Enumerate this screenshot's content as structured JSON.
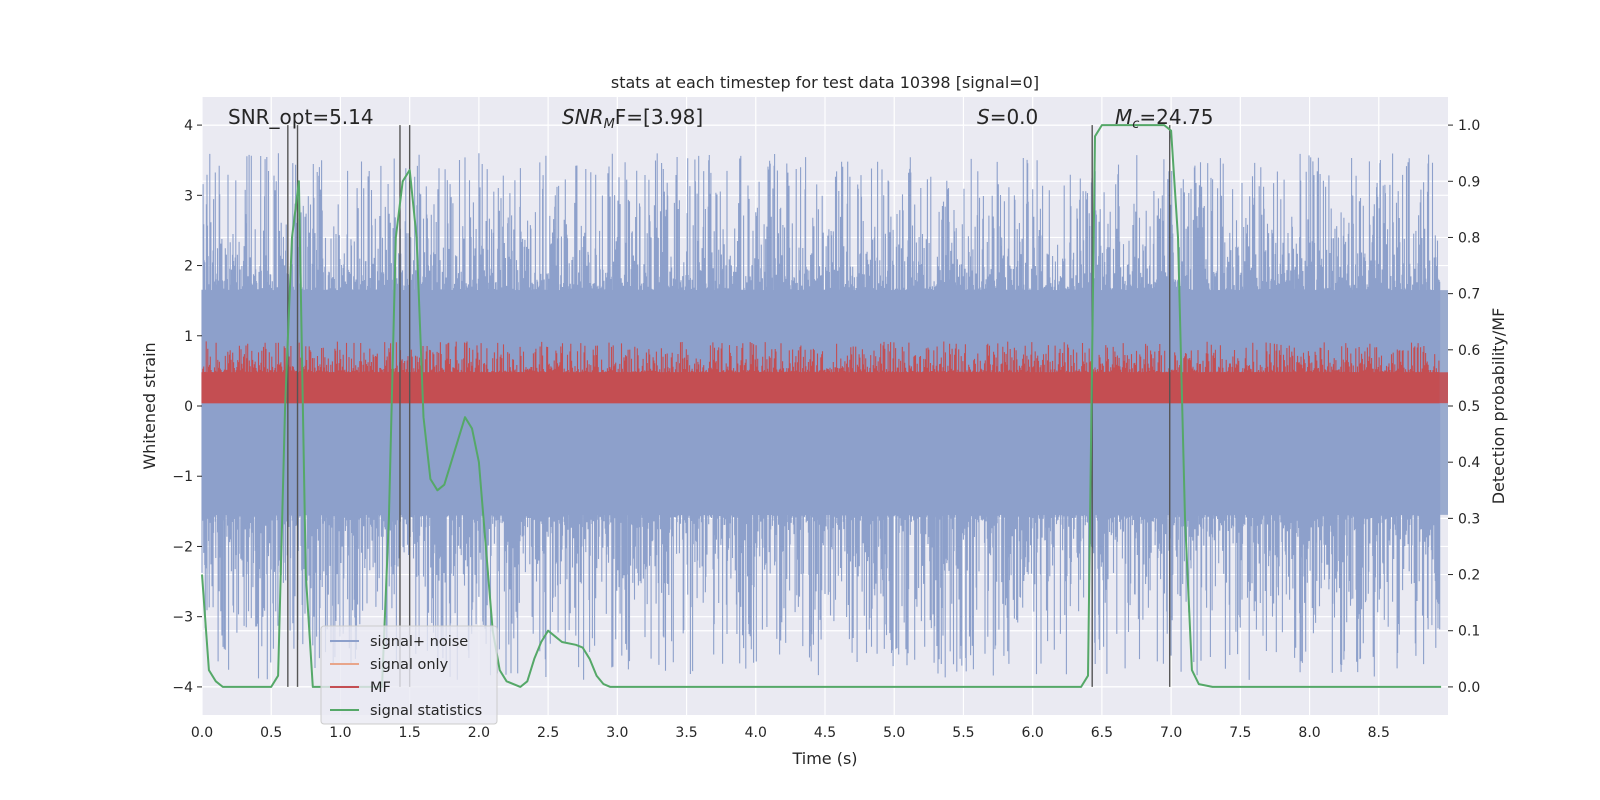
{
  "chart_data": {
    "type": "line",
    "title": "stats at each timestep for test data 10398 [signal=0]",
    "xlabel": "Time (s)",
    "ylabel": "Whitened strain",
    "y2label": "Detection probability/MF",
    "xlim": [
      0.0,
      9.0
    ],
    "ylim": [
      -4.4,
      4.4
    ],
    "y2lim": [
      -0.05,
      1.05
    ],
    "x_ticks": [
      "0.0",
      "0.5",
      "1.0",
      "1.5",
      "2.0",
      "2.5",
      "3.0",
      "3.5",
      "4.0",
      "4.5",
      "5.0",
      "5.5",
      "6.0",
      "6.5",
      "7.0",
      "7.5",
      "8.0",
      "8.5"
    ],
    "y_ticks": [
      "4",
      "3",
      "2",
      "1",
      "0",
      "−1",
      "−2",
      "−3",
      "−4"
    ],
    "y2_ticks": [
      "1.0",
      "0.9",
      "0.8",
      "0.7",
      "0.6",
      "0.5",
      "0.4",
      "0.3",
      "0.2",
      "0.1",
      "0.0"
    ],
    "annotations": {
      "snr_opt": "SNR_opt=5.14",
      "snr_mf_prefix": "SNR",
      "snr_mf_sub": "M",
      "snr_mf_suffix": "F=[3.98]",
      "s_var": "S",
      "s_value": "=0.0",
      "mc_var": "M",
      "mc_sub": "c",
      "mc_value": "=24.75"
    },
    "legend": [
      {
        "label": "signal+ noise",
        "color": "#8da0cb"
      },
      {
        "label": "signal only",
        "color": "#e8a58a"
      },
      {
        "label": "MF",
        "color": "#c44e52"
      },
      {
        "label": "signal statistics",
        "color": "#55a868"
      }
    ],
    "noise_band": {
      "name": "signal+ noise",
      "core_low": -1.55,
      "core_high": 1.65,
      "max_spike": 3.6,
      "min_spike": -3.9
    },
    "mf_band": {
      "name": "MF",
      "low": 0.505,
      "high": 0.56,
      "max_spike": 0.615
    },
    "vertical_lines": [
      0.62,
      0.69,
      1.43,
      1.5,
      6.43,
      6.99
    ],
    "signal_statistics": {
      "name": "signal statistics",
      "x": [
        0.0,
        0.05,
        0.1,
        0.15,
        0.2,
        0.3,
        0.4,
        0.5,
        0.55,
        0.6,
        0.65,
        0.7,
        0.75,
        0.8,
        0.85,
        0.9,
        1.0,
        1.1,
        1.2,
        1.3,
        1.35,
        1.4,
        1.45,
        1.5,
        1.55,
        1.6,
        1.65,
        1.7,
        1.75,
        1.8,
        1.85,
        1.9,
        1.95,
        2.0,
        2.05,
        2.1,
        2.15,
        2.2,
        2.3,
        2.35,
        2.4,
        2.45,
        2.5,
        2.55,
        2.6,
        2.7,
        2.75,
        2.8,
        2.85,
        2.9,
        2.95,
        3.0,
        3.5,
        4.0,
        5.0,
        6.0,
        6.35,
        6.4,
        6.45,
        6.5,
        6.6,
        6.8,
        6.9,
        6.95,
        7.0,
        7.05,
        7.1,
        7.15,
        7.2,
        7.3,
        8.0,
        8.95
      ],
      "y": [
        0.2,
        0.03,
        0.01,
        0.0,
        0.0,
        0.0,
        0.0,
        0.0,
        0.02,
        0.5,
        0.8,
        0.9,
        0.2,
        0.0,
        0.0,
        0.0,
        0.0,
        0.0,
        0.0,
        0.0,
        0.3,
        0.8,
        0.9,
        0.92,
        0.8,
        0.48,
        0.37,
        0.35,
        0.36,
        0.4,
        0.44,
        0.48,
        0.46,
        0.4,
        0.25,
        0.1,
        0.03,
        0.01,
        0.0,
        0.01,
        0.05,
        0.08,
        0.1,
        0.09,
        0.08,
        0.075,
        0.07,
        0.05,
        0.02,
        0.005,
        0.0,
        0.0,
        0.0,
        0.0,
        0.0,
        0.0,
        0.0,
        0.02,
        0.98,
        1.0,
        1.0,
        1.0,
        1.0,
        1.0,
        0.99,
        0.8,
        0.3,
        0.03,
        0.005,
        0.0,
        0.0,
        0.0
      ]
    }
  }
}
